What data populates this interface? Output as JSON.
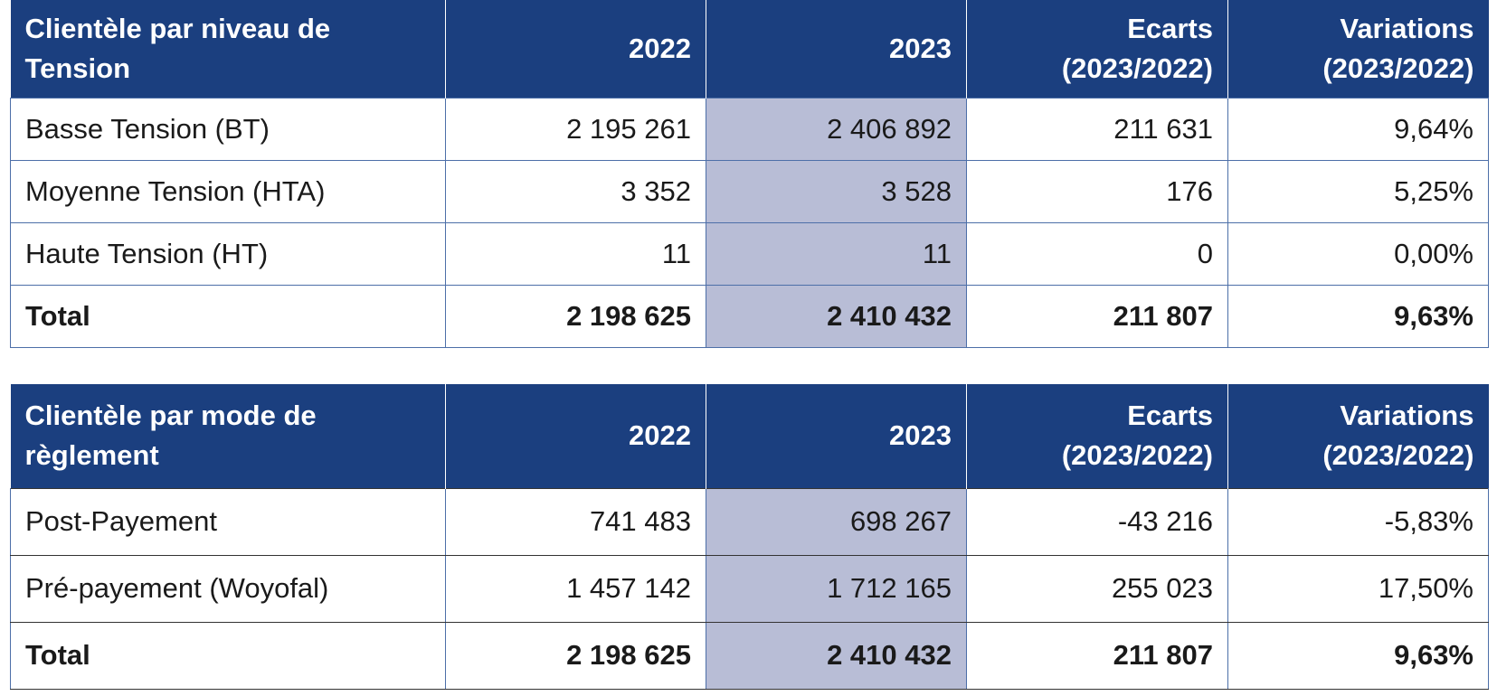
{
  "tables": [
    {
      "headers": [
        "Clientèle par niveau de Tension",
        "2022",
        "2023",
        "Ecarts (2023/2022)",
        "Variations (2023/2022)"
      ],
      "rows": [
        [
          "Basse Tension (BT)",
          "2 195 261",
          "2 406 892",
          "211 631",
          "9,64%"
        ],
        [
          "Moyenne Tension (HTA)",
          "3 352",
          "3 528",
          "176",
          "5,25%"
        ],
        [
          "Haute Tension (HT)",
          "11",
          "11",
          "0",
          "0,00%"
        ]
      ],
      "total": [
        "Total",
        "2 198 625",
        "2 410 432",
        "211 807",
        "9,63%"
      ]
    },
    {
      "headers": [
        "Clientèle par mode de règlement",
        "2022",
        "2023",
        "Ecarts (2023/2022)",
        "Variations (2023/2022)"
      ],
      "rows": [
        [
          "Post-Payement",
          "741 483",
          "698 267",
          "-43 216",
          "-5,83%"
        ],
        [
          "Pré-payement (Woyofal)",
          "1 457 142",
          "1 712 165",
          "255 023",
          "17,50%"
        ]
      ],
      "total": [
        "Total",
        "2 198 625",
        "2 410 432",
        "211 807",
        "9,63%"
      ]
    }
  ],
  "colors": {
    "header_bg": "#1b3f7f",
    "header_text": "#ffffff",
    "highlight_col": "#b8bdd6",
    "border": "#4d6fa8"
  }
}
